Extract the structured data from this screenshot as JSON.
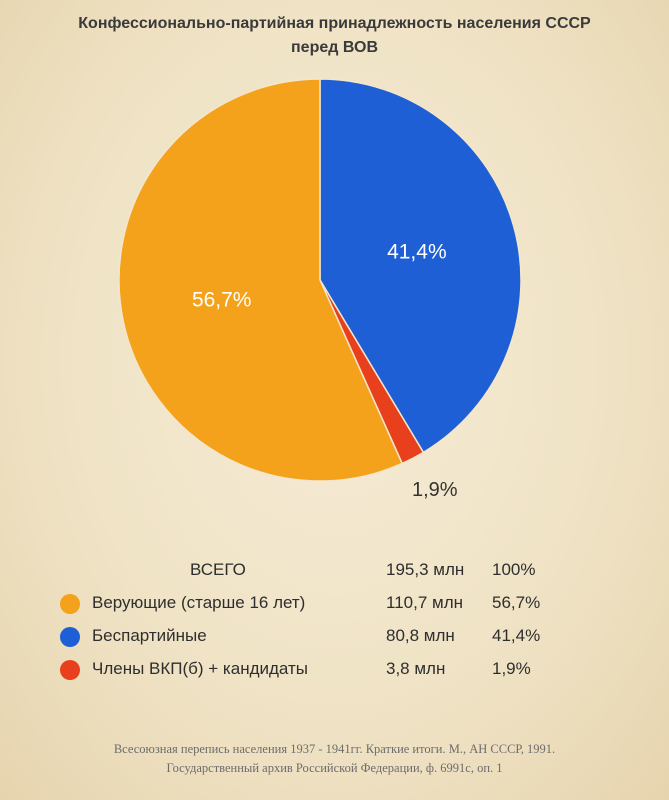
{
  "chart_data": {
    "type": "pie",
    "title_line1": "Конфессионально-партийная принадлежность населения СССР",
    "title_line2": "перед ВОВ",
    "slices": [
      {
        "label": "Верующие (старше 16 лет)",
        "value": 56.7,
        "pct_label": "56,7%",
        "amount": "110,7 млн",
        "color": "#f4a21b"
      },
      {
        "label": "Беспартийные",
        "value": 41.4,
        "pct_label": "41,4%",
        "amount": "80,8 млн",
        "color": "#1f5fd6"
      },
      {
        "label": "Члены ВКП(б) + кандидаты",
        "value": 1.9,
        "pct_label": "1,9%",
        "amount": "3,8 млн",
        "color": "#e8401c"
      }
    ],
    "total": {
      "label": "ВСЕГО",
      "amount": "195,3 млн",
      "pct": "100%"
    }
  },
  "source": {
    "line1": "Всесоюзная перепись населения 1937 - 1941гг. Краткие итоги. М., АН СССР, 1991.",
    "line2": "Государственный архив Российской Федерации, ф. 6991с, оп. 1"
  }
}
